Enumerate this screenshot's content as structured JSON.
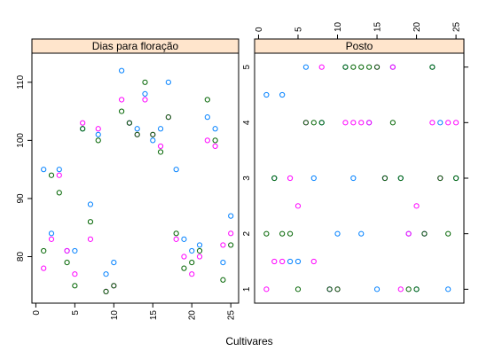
{
  "chart_data": {
    "type": "scatter",
    "xlabel": "Cultivares",
    "colors": [
      "#0080ff",
      "#ff00ff",
      "#006400"
    ],
    "panels": [
      {
        "title": "Dias para floração",
        "xlim": [
          -0.5,
          26
        ],
        "ylim": [
          72,
          115
        ],
        "x_ticks": [
          0,
          5,
          10,
          15,
          20,
          25
        ],
        "y_ticks": [
          80,
          90,
          100,
          110
        ],
        "series": [
          {
            "x": [
              1,
              2,
              3,
              4,
              5,
              6,
              7,
              8,
              9,
              10,
              11,
              12,
              13,
              14,
              15,
              16,
              17,
              18,
              19,
              20,
              21,
              22,
              23,
              24,
              25
            ],
            "y": [
              95,
              84,
              95,
              81,
              81,
              102,
              89,
              101,
              77,
              79,
              112,
              103,
              102,
              108,
              100,
              102,
              110,
              95,
              83,
              81,
              82,
              104,
              102,
              79,
              87
            ]
          },
          {
            "x": [
              1,
              2,
              3,
              4,
              5,
              6,
              7,
              8,
              9,
              10,
              11,
              12,
              13,
              14,
              15,
              16,
              17,
              18,
              19,
              20,
              21,
              22,
              23,
              24,
              25
            ],
            "y": [
              78,
              83,
              94,
              81,
              77,
              103,
              83,
              102,
              74,
              75,
              107,
              103,
              101,
              107,
              101,
              99,
              104,
              83,
              80,
              77,
              80,
              100,
              99,
              82,
              84
            ]
          },
          {
            "x": [
              1,
              2,
              3,
              4,
              5,
              6,
              7,
              8,
              9,
              10,
              11,
              12,
              13,
              14,
              15,
              16,
              17,
              18,
              19,
              20,
              21,
              22,
              23,
              24,
              25
            ],
            "y": [
              81,
              94,
              91,
              79,
              75,
              102,
              86,
              100,
              74,
              75,
              105,
              103,
              101,
              110,
              101,
              98,
              104,
              84,
              78,
              79,
              81,
              107,
              100,
              76,
              82
            ]
          }
        ]
      },
      {
        "title": "Posto",
        "xlim": [
          -0.5,
          26
        ],
        "ylim": [
          0.75,
          5.25
        ],
        "x_ticks": [
          0,
          5,
          10,
          15,
          20,
          25
        ],
        "y_ticks": [
          1,
          2,
          3,
          4,
          5
        ],
        "series": [
          {
            "x": [
              1,
              2,
              3,
              4,
              5,
              6,
              7,
              8,
              9,
              10,
              11,
              12,
              13,
              14,
              15,
              16,
              17,
              18,
              19,
              20,
              21,
              22,
              23,
              24,
              25
            ],
            "y": [
              4.5,
              3,
              4.5,
              1.5,
              1.5,
              5,
              3,
              4,
              1,
              2,
              5,
              3,
              2,
              4,
              1,
              3,
              5,
              3,
              2,
              1,
              2,
              5,
              4,
              1,
              3
            ]
          },
          {
            "x": [
              1,
              2,
              3,
              4,
              5,
              6,
              7,
              8,
              9,
              10,
              11,
              12,
              13,
              14,
              15,
              16,
              17,
              18,
              19,
              20,
              21,
              22,
              23,
              24,
              25
            ],
            "y": [
              1,
              1.5,
              1.5,
              3,
              2.5,
              4,
              1.5,
              5,
              1,
              1,
              4,
              4,
              4,
              4,
              5,
              3,
              5,
              1,
              2,
              2.5,
              2,
              4,
              3,
              4,
              4
            ]
          },
          {
            "x": [
              1,
              2,
              3,
              4,
              5,
              6,
              7,
              8,
              9,
              10,
              11,
              12,
              13,
              14,
              15,
              16,
              17,
              18,
              19,
              20,
              21,
              22,
              23,
              24,
              25
            ],
            "y": [
              2,
              3,
              2,
              2,
              1,
              4,
              4,
              4,
              1,
              1,
              5,
              5,
              5,
              5,
              5,
              3,
              4,
              3,
              1,
              1,
              2,
              5,
              3,
              2,
              3
            ]
          }
        ]
      }
    ]
  }
}
